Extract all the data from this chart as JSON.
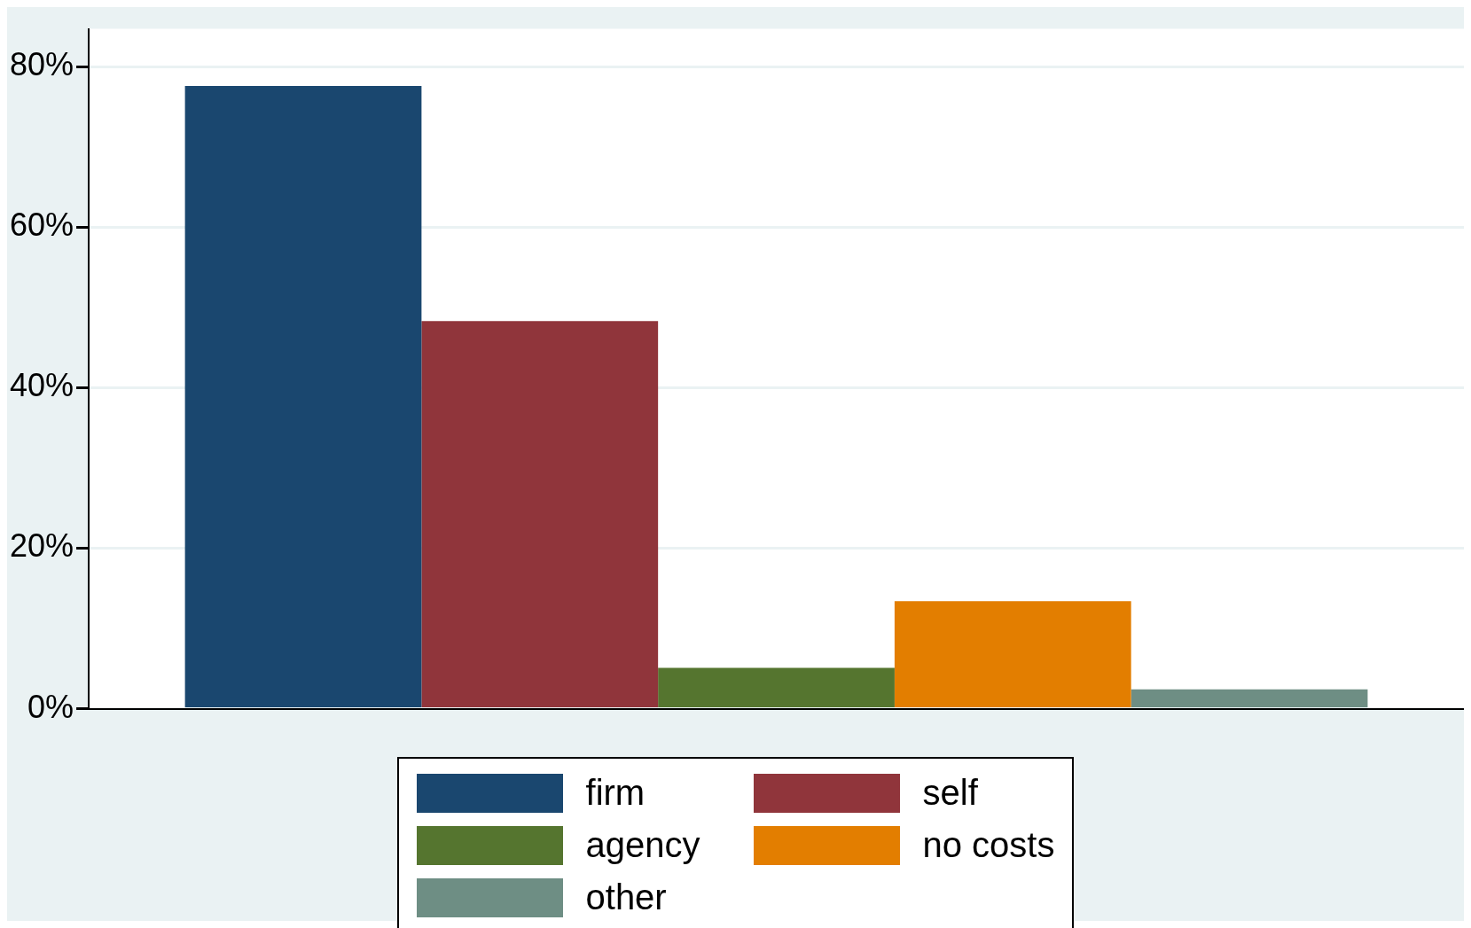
{
  "chart_data": {
    "type": "bar",
    "categories": [
      null
    ],
    "series": [
      {
        "name": "firm",
        "color": "#1a476f",
        "values": [
          77.6
        ]
      },
      {
        "name": "self",
        "color": "#90353b",
        "values": [
          48.3
        ]
      },
      {
        "name": "agency",
        "color": "#55752f",
        "values": [
          5.1
        ]
      },
      {
        "name": "no costs",
        "color": "#e37e00",
        "values": [
          13.4
        ]
      },
      {
        "name": "other",
        "color": "#6e8e84",
        "values": [
          2.4
        ]
      }
    ],
    "ylim": [
      0,
      84.7
    ],
    "yticks": [
      {
        "value": 0,
        "label": "0%"
      },
      {
        "value": 20,
        "label": "20%"
      },
      {
        "value": 40,
        "label": "40%"
      },
      {
        "value": 60,
        "label": "60%"
      },
      {
        "value": 80,
        "label": "80%"
      }
    ],
    "grid": "y",
    "legend": "bottom"
  }
}
